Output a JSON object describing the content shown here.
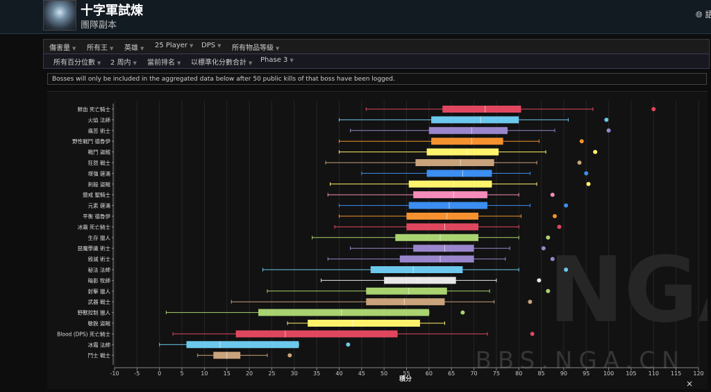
{
  "header": {
    "title": "十字軍試煉",
    "subtitle": "團隊副本",
    "lang_label": "語"
  },
  "filters_row1": [
    "傷害量",
    "所有王",
    "英雄",
    "25 Player",
    "DPS",
    "所有物品等級"
  ],
  "filters_row2": [
    "所有百分位數",
    "2 周内",
    "當前排名",
    "以標準化分數合計",
    "Phase 3"
  ],
  "notice": "Bosses will only be included in the aggregated data below after 50 public kills of that boss have been logged.",
  "watermark": "BBS.NGA.CN",
  "watermark_logo": "NGA",
  "close_label": "×",
  "chart_data": {
    "type": "boxplot",
    "orientation": "horizontal",
    "title": "",
    "xlabel": "積分",
    "ylabel": "",
    "xlim": [
      -10,
      120
    ],
    "xticks": [
      -10,
      -5,
      0,
      5,
      10,
      15,
      20,
      25,
      30,
      35,
      40,
      45,
      50,
      55,
      60,
      65,
      70,
      75,
      80,
      85,
      90,
      95,
      100,
      105,
      110,
      115,
      120
    ],
    "grid": true,
    "series": [
      {
        "label": "鮮血 死亡騎士",
        "color": "#e0475f",
        "min": 46,
        "q1": 63,
        "median": 72.5,
        "q3": 80.5,
        "max": 96.5,
        "outlier": 110
      },
      {
        "label": "火焰 法師",
        "color": "#6cc8ec",
        "min": 40,
        "q1": 60.5,
        "median": 71.5,
        "q3": 80,
        "max": 91,
        "outlier": 99.5
      },
      {
        "label": "痛苦 術士",
        "color": "#9a86cc",
        "min": 42.5,
        "q1": 60,
        "median": 69.5,
        "q3": 77.5,
        "max": 88,
        "outlier": 100
      },
      {
        "label": "野性戰鬥 德魯伊",
        "color": "#f5922f",
        "min": 40,
        "q1": 60.5,
        "median": 69.5,
        "q3": 76.5,
        "max": 84.5,
        "outlier": 94
      },
      {
        "label": "戰鬥 盜賊",
        "color": "#fff36b",
        "min": 40,
        "q1": 59.5,
        "median": 68.5,
        "q3": 75.5,
        "max": 86,
        "outlier": 97
      },
      {
        "label": "狂怒 戰士",
        "color": "#c9a37b",
        "min": 37,
        "q1": 57,
        "median": 67,
        "q3": 74.5,
        "max": 84,
        "outlier": 93.5
      },
      {
        "label": "增強 薩滿",
        "color": "#3c8ef0",
        "min": 45,
        "q1": 59.5,
        "median": 67.5,
        "q3": 74,
        "max": 82.5,
        "outlier": 95
      },
      {
        "label": "刺殺 盜賊",
        "color": "#fff36b",
        "min": 38,
        "q1": 55.5,
        "median": 65.5,
        "q3": 74,
        "max": 84,
        "outlier": 95.5
      },
      {
        "label": "懲戒 聖騎士",
        "color": "#f58cba",
        "min": 37.5,
        "q1": 56.5,
        "median": 65.5,
        "q3": 73,
        "max": 80,
        "outlier": 87.5
      },
      {
        "label": "元素 薩滿",
        "color": "#3c8ef0",
        "min": 40,
        "q1": 55.5,
        "median": 64.5,
        "q3": 73,
        "max": 82.5,
        "outlier": 90.5
      },
      {
        "label": "平衡 德魯伊",
        "color": "#f5922f",
        "min": 40,
        "q1": 55,
        "median": 64,
        "q3": 71,
        "max": 80.5,
        "outlier": 88
      },
      {
        "label": "冰霜 死亡騎士",
        "color": "#e0475f",
        "min": 39,
        "q1": 55,
        "median": 63.5,
        "q3": 71,
        "max": 80,
        "outlier": 89
      },
      {
        "label": "生存 獵人",
        "color": "#a9d271",
        "min": 34,
        "q1": 52.5,
        "median": 62.5,
        "q3": 71,
        "max": 80,
        "outlier": 86.5
      },
      {
        "label": "惡魔學識 術士",
        "color": "#9a86cc",
        "min": 42.5,
        "q1": 56.5,
        "median": 63.5,
        "q3": 70,
        "max": 78,
        "outlier": 85.5
      },
      {
        "label": "毀滅 術士",
        "color": "#9a86cc",
        "min": 37.5,
        "q1": 53.5,
        "median": 62.5,
        "q3": 70,
        "max": 77,
        "outlier": 87.5
      },
      {
        "label": "秘法 法師",
        "color": "#6cc8ec",
        "min": 23,
        "q1": 47,
        "median": 56.5,
        "q3": 67.5,
        "max": 80,
        "outlier": 90.5
      },
      {
        "label": "暗影 牧師",
        "color": "#e8e8e8",
        "min": 36,
        "q1": 50,
        "median": 57.5,
        "q3": 66,
        "max": 75,
        "outlier": 84.5
      },
      {
        "label": "射擊 獵人",
        "color": "#a9d271",
        "min": 24,
        "q1": 46,
        "median": 55.5,
        "q3": 64,
        "max": 73.5,
        "outlier": 86.5
      },
      {
        "label": "武器 戰士",
        "color": "#c9a37b",
        "min": 16,
        "q1": 46,
        "median": 54.5,
        "q3": 63.5,
        "max": 74.5,
        "outlier": 82.5
      },
      {
        "label": "野獸控制 獵人",
        "color": "#a9d271",
        "min": 1.5,
        "q1": 22,
        "median": 40.5,
        "q3": 60,
        "max": 60,
        "outlier": 67.5
      },
      {
        "label": "敏銳 盜賊",
        "color": "#fff36b",
        "min": 28.5,
        "q1": 33,
        "median": 43,
        "q3": 58,
        "max": 63.5,
        "outlier": null
      },
      {
        "label": "Blood (DPS) 死亡騎士",
        "color": "#e0475f",
        "min": 3,
        "q1": 17,
        "median": 28,
        "q3": 53,
        "max": 73,
        "outlier": 83
      },
      {
        "label": "冰霜 法師",
        "color": "#6cc8ec",
        "min": 0,
        "q1": 6,
        "median": 13.5,
        "q3": 31,
        "max": 31,
        "outlier": 42
      },
      {
        "label": "鬥士 戰士",
        "color": "#c9a37b",
        "min": 8.5,
        "q1": 12,
        "median": 15,
        "q3": 18,
        "max": 24,
        "outlier": 29
      }
    ]
  }
}
